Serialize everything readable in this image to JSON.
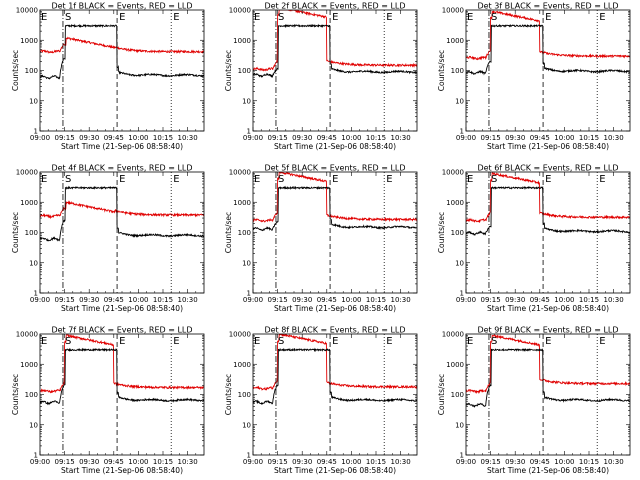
{
  "window": {
    "title": ""
  },
  "chart_data": {
    "type": "line",
    "shared": {
      "xlabel": "Start Time (21-Sep-06 08:58:40)",
      "ylabel": "Counts/sec",
      "x_tick_labels": [
        "09:00",
        "09:15",
        "09:30",
        "09:45",
        "10:00",
        "10:15",
        "10:30"
      ],
      "x_ticks_minutes": [
        0,
        15,
        30,
        45,
        60,
        75,
        90
      ],
      "xlim_minutes": [
        0,
        100
      ],
      "y_scale": "log",
      "ylim": [
        1,
        10000
      ],
      "y_tick_labels": [
        "1",
        "10",
        "100",
        "1000",
        "10000"
      ],
      "y_tick_values": [
        1,
        10,
        100,
        1000,
        10000
      ],
      "grid": false,
      "series_colors": {
        "events": "#000000",
        "lld": "#e00000"
      },
      "markers": [
        {
          "label": "S",
          "x": 14,
          "style": "dashdot"
        },
        {
          "label": "E",
          "x": 47,
          "style": "dash"
        },
        {
          "label": "E",
          "x": 80,
          "style": "dot"
        }
      ],
      "marker_label_start_left": "E"
    },
    "panels": [
      {
        "title": "Det 1f BLACK = Events, RED = LLD",
        "events": {
          "pre": 60,
          "post": 70,
          "spike": 250
        },
        "lld": {
          "pre": 420,
          "peak": 1200,
          "post": 420,
          "drop_at": 46
        }
      },
      {
        "title": "Det 2f BLACK = Events, RED = LLD",
        "events": {
          "pre": 70,
          "post": 90,
          "spike": 110
        },
        "lld": {
          "pre": 110,
          "peak": 12000,
          "post": 150,
          "drop_at": 45
        }
      },
      {
        "title": "Det 3f BLACK = Events, RED = LLD",
        "events": {
          "pre": 85,
          "post": 95,
          "spike": 200
        },
        "lld": {
          "pre": 260,
          "peak": 9000,
          "post": 300,
          "drop_at": 45
        }
      },
      {
        "title": "Det 4f BLACK = Events, RED = LLD",
        "events": {
          "pre": 60,
          "post": 80,
          "spike": 250
        },
        "lld": {
          "pre": 350,
          "peak": 1000,
          "post": 380,
          "drop_at": 46
        }
      },
      {
        "title": "Det 5f BLACK = Events, RED = LLD",
        "events": {
          "pre": 130,
          "post": 150,
          "spike": 220
        },
        "lld": {
          "pre": 250,
          "peak": 10000,
          "post": 270,
          "drop_at": 45
        }
      },
      {
        "title": "Det 6f BLACK = Events, RED = LLD",
        "events": {
          "pre": 95,
          "post": 110,
          "spike": 160
        },
        "lld": {
          "pre": 250,
          "peak": 9000,
          "post": 320,
          "drop_at": 45
        }
      },
      {
        "title": "Det 7f BLACK = Events, RED = LLD",
        "events": {
          "pre": 55,
          "post": 65,
          "spike": 200
        },
        "lld": {
          "pre": 130,
          "peak": 9000,
          "post": 170,
          "drop_at": 45
        }
      },
      {
        "title": "Det 8f BLACK = Events, RED = LLD",
        "events": {
          "pre": 55,
          "post": 65,
          "spike": 200
        },
        "lld": {
          "pre": 160,
          "peak": 10000,
          "post": 180,
          "drop_at": 45
        }
      },
      {
        "title": "Det 9f BLACK = Events, RED = LLD",
        "events": {
          "pre": 45,
          "post": 65,
          "spike": 200
        },
        "lld": {
          "pre": 130,
          "peak": 9000,
          "post": 230,
          "drop_at": 45
        }
      }
    ]
  }
}
